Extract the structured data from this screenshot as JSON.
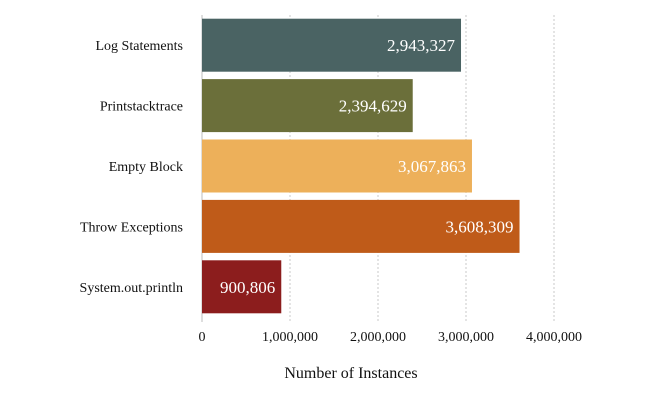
{
  "chart_data": {
    "type": "bar",
    "orientation": "horizontal",
    "categories": [
      "Log Statements",
      "Printstacktrace",
      "Empty Block",
      "Throw Exceptions",
      "System.out.println"
    ],
    "values": [
      2943327,
      2394629,
      3067863,
      3608309,
      900806
    ],
    "data_labels": [
      "2,943,327",
      "2,394,629",
      "3,067,863",
      "3,608,309",
      "900,806"
    ],
    "colors": [
      "#4a6363",
      "#6b6f3a",
      "#edb05a",
      "#bf5b19",
      "#8c1d1d"
    ],
    "xlabel": "Number of Instances",
    "xlim": [
      0,
      4000000
    ],
    "xticks": [
      0,
      1000000,
      2000000,
      3000000,
      4000000
    ],
    "xtick_labels": [
      "0",
      "1,000,000",
      "2,000,000",
      "3,000,000",
      "4,000,000"
    ],
    "grid": "vertical dashed",
    "legend": "none"
  }
}
